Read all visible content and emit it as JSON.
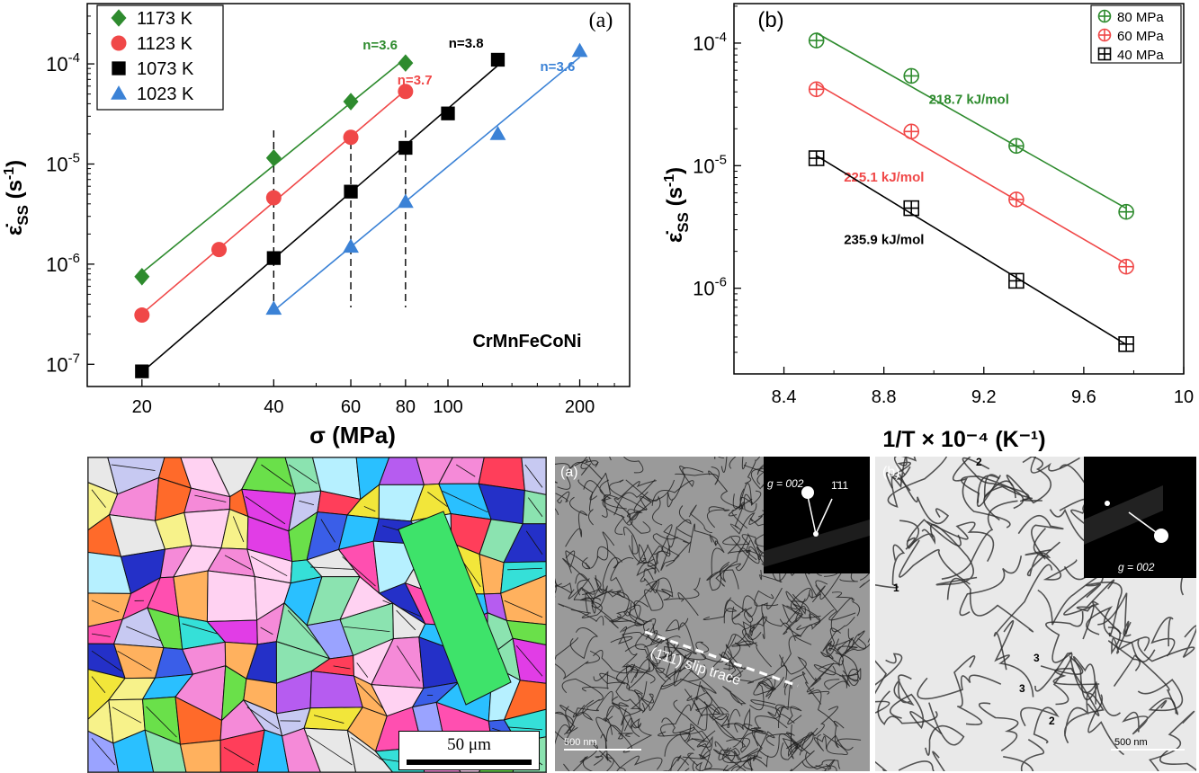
{
  "chart_data": [
    {
      "type": "scatter",
      "panel_label": "(a)",
      "xlabel": "σ (MPa)",
      "ylabel": "ε̇ss (s⁻¹)",
      "xscale": "log",
      "yscale": "log",
      "xlim": [
        15,
        260
      ],
      "ylim": [
        6e-08,
        0.0004
      ],
      "xticks": [
        20,
        40,
        60,
        80,
        100,
        200
      ],
      "yticks": [
        1e-07,
        1e-06,
        1e-05,
        0.0001
      ],
      "ytick_labels": [
        [
          "10",
          "-7"
        ],
        [
          "10",
          "-6"
        ],
        [
          "10",
          "-5"
        ],
        [
          "10",
          "-4"
        ]
      ],
      "legend_position": "top-left",
      "annotation": "CrMnFeCoNi",
      "vertical_guides": [
        40,
        60,
        80
      ],
      "series": [
        {
          "name": "1173 K",
          "color": "#2e8b2e",
          "marker": "diamond",
          "x": [
            20,
            40,
            60,
            80
          ],
          "y": [
            7.5e-07,
            1.15e-05,
            4.2e-05,
            0.000102
          ],
          "exponent_label": "n=3.6",
          "label_x": 70,
          "label_y": 0.00014
        },
        {
          "name": "1123 K",
          "color": "#f04848",
          "marker": "circle",
          "x": [
            20,
            30,
            40,
            60,
            80
          ],
          "y": [
            3.1e-07,
            1.4e-06,
            4.6e-06,
            1.85e-05,
            5.3e-05
          ],
          "exponent_label": "n=3.7",
          "label_x": 84,
          "label_y": 6.2e-05
        },
        {
          "name": "1073 K",
          "color": "#000000",
          "marker": "square",
          "x": [
            20,
            40,
            60,
            80,
            100,
            130
          ],
          "y": [
            8.5e-08,
            1.15e-06,
            5.3e-06,
            1.45e-05,
            3.2e-05,
            0.00011
          ],
          "exponent_label": "n=3.8",
          "label_x": 110,
          "label_y": 0.000145
        },
        {
          "name": "1023 K",
          "color": "#3b82d6",
          "marker": "triangle",
          "x": [
            40,
            60,
            80,
            130,
            200
          ],
          "y": [
            3.6e-07,
            1.5e-06,
            4.2e-06,
            2e-05,
            0.000135
          ],
          "exponent_label": "n=3.6",
          "label_x": 178,
          "label_y": 8.5e-05
        }
      ]
    },
    {
      "type": "scatter",
      "panel_label": "(b)",
      "xlabel": "1/T × 10⁻⁴ (K⁻¹)",
      "ylabel": "ε̇ss (s⁻¹)",
      "xscale": "linear",
      "yscale": "log",
      "xlim": [
        8.2,
        10.0
      ],
      "ylim": [
        2e-07,
        0.00021
      ],
      "xticks": [
        8.4,
        8.8,
        9.2,
        9.6,
        10
      ],
      "xtick_labels": [
        "8.4",
        "8.8",
        "9.2",
        "9.6",
        "10"
      ],
      "yticks": [
        1e-06,
        1e-05,
        0.0001
      ],
      "ytick_labels": [
        [
          "10",
          "-6"
        ],
        [
          "10",
          "-5"
        ],
        [
          "10",
          "-4"
        ]
      ],
      "legend_position": "top-right",
      "series": [
        {
          "name": "80 MPa",
          "color": "#2e8b2e",
          "marker": "circle-plus",
          "x": [
            8.53,
            8.91,
            9.33,
            9.77
          ],
          "y": [
            0.000105,
            5.4e-05,
            1.45e-05,
            4.2e-06
          ],
          "energy_label": "218.7 kJ/mol",
          "label_x": 8.98,
          "label_y": 3.2e-05
        },
        {
          "name": "60 MPa",
          "color": "#f04848",
          "marker": "circle-plus",
          "x": [
            8.53,
            8.91,
            9.33,
            9.77
          ],
          "y": [
            4.2e-05,
            1.9e-05,
            5.3e-06,
            1.5e-06
          ],
          "energy_label": "225.1 kJ/mol",
          "label_x": 8.64,
          "label_y": 7.4e-06
        },
        {
          "name": "40 MPa",
          "color": "#000000",
          "marker": "square-plus",
          "x": [
            8.53,
            8.91,
            9.33,
            9.77
          ],
          "y": [
            1.15e-05,
            4.5e-06,
            1.15e-06,
            3.5e-07
          ],
          "energy_label": "235.9 kJ/mol",
          "label_x": 8.64,
          "label_y": 2.3e-06
        }
      ]
    }
  ],
  "micrographs": {
    "ebsd_scalebar": "50 μm",
    "tem_a": {
      "label": "(a)",
      "scalebar": "500 nm",
      "g_vector": "g = 002",
      "reflection": "1̄11",
      "slip_trace": "(1̄11) slip trace"
    },
    "tem_b": {
      "label": "(b)",
      "scalebar": "500 nm",
      "g_vector": "g = 002",
      "markers": [
        "1",
        "2",
        "2",
        "3",
        "3"
      ]
    }
  }
}
